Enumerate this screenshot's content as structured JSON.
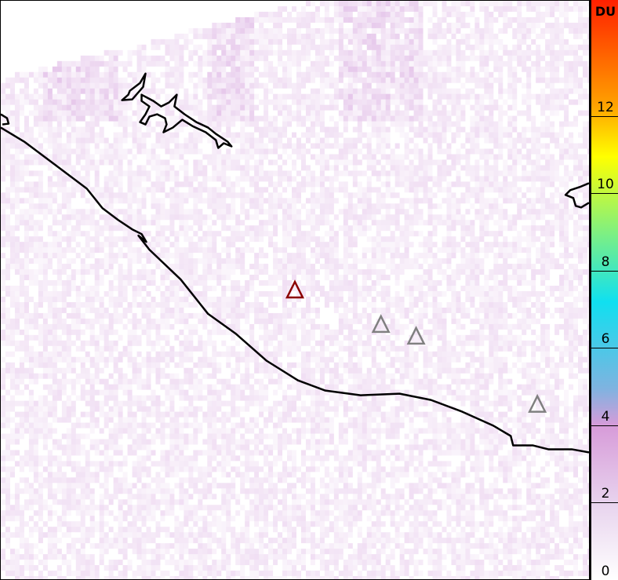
{
  "colorbar": {
    "unit": "DU",
    "min": 0,
    "max": 15,
    "ticks": [
      "0",
      "2",
      "4",
      "6",
      "8",
      "10",
      "12"
    ],
    "colors": [
      "#ffffff",
      "#e8d4ee",
      "#d79bd9",
      "#7fb3e0",
      "#10e0f0",
      "#80f080",
      "#ffff00",
      "#ffa000",
      "#ff2000"
    ]
  },
  "map": {
    "background": "#ffffff",
    "coastline_color": "#000000",
    "volcanoes": [
      {
        "status": "active",
        "color": "#8b0000"
      },
      {
        "status": "other",
        "color": "#808080"
      },
      {
        "status": "other",
        "color": "#808080"
      },
      {
        "status": "other",
        "color": "#808080"
      }
    ]
  }
}
